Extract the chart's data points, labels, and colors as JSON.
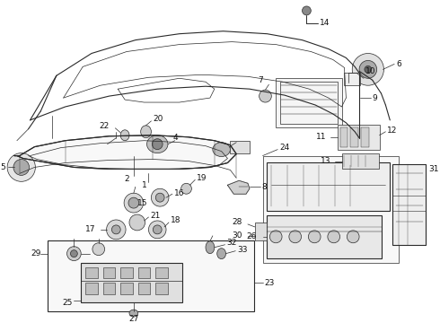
{
  "bg_color": "#ffffff",
  "line_color": "#2a2a2a",
  "label_color": "#111111",
  "fig_w": 4.9,
  "fig_h": 3.6,
  "dpi": 100,
  "lw_thin": 0.5,
  "lw_med": 0.8,
  "lw_thick": 1.1
}
